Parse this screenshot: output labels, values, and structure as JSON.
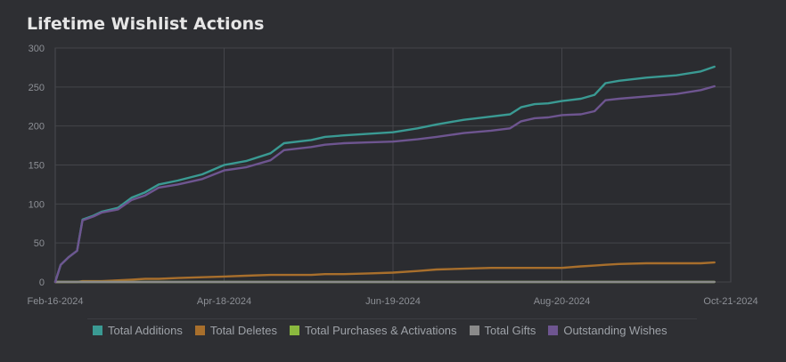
{
  "chart_data": {
    "type": "line",
    "title": "Lifetime Wishlist Actions",
    "xlabel": "",
    "ylabel": "",
    "x_range": [
      "2024-02-16",
      "2024-10-21"
    ],
    "x_ticks": [
      "Feb-16-2024",
      "Apr-18-2024",
      "Jun-19-2024",
      "Aug-20-2024",
      "Oct-21-2024"
    ],
    "ylim": [
      0,
      300
    ],
    "y_ticks": [
      "0",
      "50",
      "100",
      "150",
      "200",
      "250",
      "300"
    ],
    "grid": true,
    "legend_position": "bottom",
    "x": [
      "2024-02-16",
      "2024-02-18",
      "2024-02-21",
      "2024-02-24",
      "2024-02-26",
      "2024-03-01",
      "2024-03-04",
      "2024-03-10",
      "2024-03-15",
      "2024-03-20",
      "2024-03-25",
      "2024-04-01",
      "2024-04-10",
      "2024-04-18",
      "2024-04-26",
      "2024-05-05",
      "2024-05-10",
      "2024-05-20",
      "2024-05-25",
      "2024-06-01",
      "2024-06-10",
      "2024-06-19",
      "2024-06-28",
      "2024-07-05",
      "2024-07-15",
      "2024-07-25",
      "2024-08-01",
      "2024-08-05",
      "2024-08-10",
      "2024-08-15",
      "2024-08-20",
      "2024-08-27",
      "2024-09-01",
      "2024-09-05",
      "2024-09-10",
      "2024-09-20",
      "2024-10-01",
      "2024-10-10",
      "2024-10-15"
    ],
    "series": [
      {
        "name": "Total Additions",
        "color": "#3a9a93",
        "values": [
          0,
          22,
          32,
          40,
          80,
          85,
          90,
          95,
          108,
          115,
          125,
          130,
          138,
          150,
          155,
          165,
          178,
          182,
          186,
          188,
          190,
          192,
          197,
          202,
          208,
          212,
          215,
          224,
          228,
          229,
          232,
          235,
          240,
          255,
          258,
          262,
          265,
          270,
          276
        ]
      },
      {
        "name": "Total Deletes",
        "color": "#a86f2c",
        "values": [
          0,
          0,
          0,
          0,
          1,
          1,
          1,
          2,
          3,
          4,
          4,
          5,
          6,
          7,
          8,
          9,
          9,
          9,
          10,
          10,
          11,
          12,
          14,
          16,
          17,
          18,
          18,
          18,
          18,
          18,
          18,
          20,
          21,
          22,
          23,
          24,
          24,
          24,
          25
        ]
      },
      {
        "name": "Total Purchases & Activations",
        "color": "#8ab83e",
        "values": [
          0,
          0,
          0,
          0,
          0,
          0,
          0,
          0,
          0,
          0,
          0,
          0,
          0,
          0,
          0,
          0,
          0,
          0,
          0,
          0,
          0,
          0,
          0,
          0,
          0,
          0,
          0,
          0,
          0,
          0,
          0,
          0,
          0,
          0,
          0,
          0,
          0,
          0,
          0
        ]
      },
      {
        "name": "Total Gifts",
        "color": "#8a8a8a",
        "values": [
          0,
          0,
          0,
          0,
          0,
          0,
          0,
          0,
          0,
          0,
          0,
          0,
          0,
          0,
          0,
          0,
          0,
          0,
          0,
          0,
          0,
          0,
          0,
          0,
          0,
          0,
          0,
          0,
          0,
          0,
          0,
          0,
          0,
          0,
          0,
          0,
          0,
          0,
          0
        ]
      },
      {
        "name": "Outstanding Wishes",
        "color": "#6e5590",
        "values": [
          0,
          22,
          32,
          40,
          79,
          84,
          89,
          93,
          105,
          111,
          121,
          125,
          132,
          143,
          147,
          156,
          169,
          173,
          176,
          178,
          179,
          180,
          183,
          186,
          191,
          194,
          197,
          206,
          210,
          211,
          214,
          215,
          219,
          233,
          235,
          238,
          241,
          246,
          251
        ]
      }
    ]
  },
  "legend": {
    "items": [
      {
        "label": "Total Additions",
        "color": "#3a9a93"
      },
      {
        "label": "Total Deletes",
        "color": "#a86f2c"
      },
      {
        "label": "Total Purchases & Activations",
        "color": "#8ab83e"
      },
      {
        "label": "Total Gifts",
        "color": "#8a8a8a"
      },
      {
        "label": "Outstanding Wishes",
        "color": "#6e5590"
      }
    ]
  }
}
